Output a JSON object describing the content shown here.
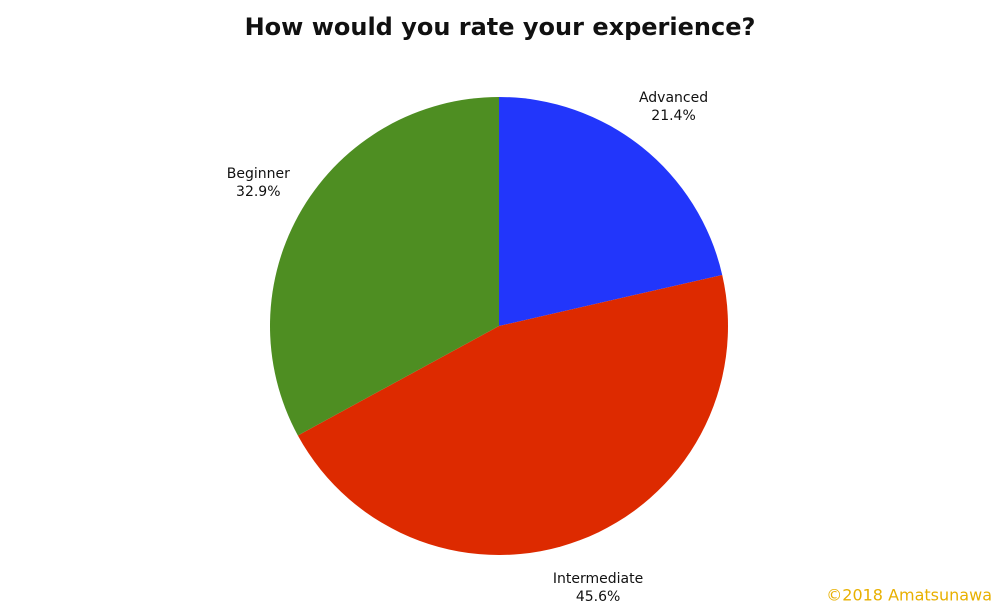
{
  "chart_data": {
    "type": "pie",
    "title": "How would you rate your experience?",
    "categories": [
      "Advanced",
      "Intermediate",
      "Beginner"
    ],
    "values": [
      21.4,
      45.6,
      32.9
    ],
    "value_labels": [
      "21.4%",
      "45.6%",
      "32.9%"
    ],
    "colors": [
      "#2236fb",
      "#dd2a00",
      "#4e8e22"
    ],
    "annotation": "©2018 Amatsunawa"
  }
}
